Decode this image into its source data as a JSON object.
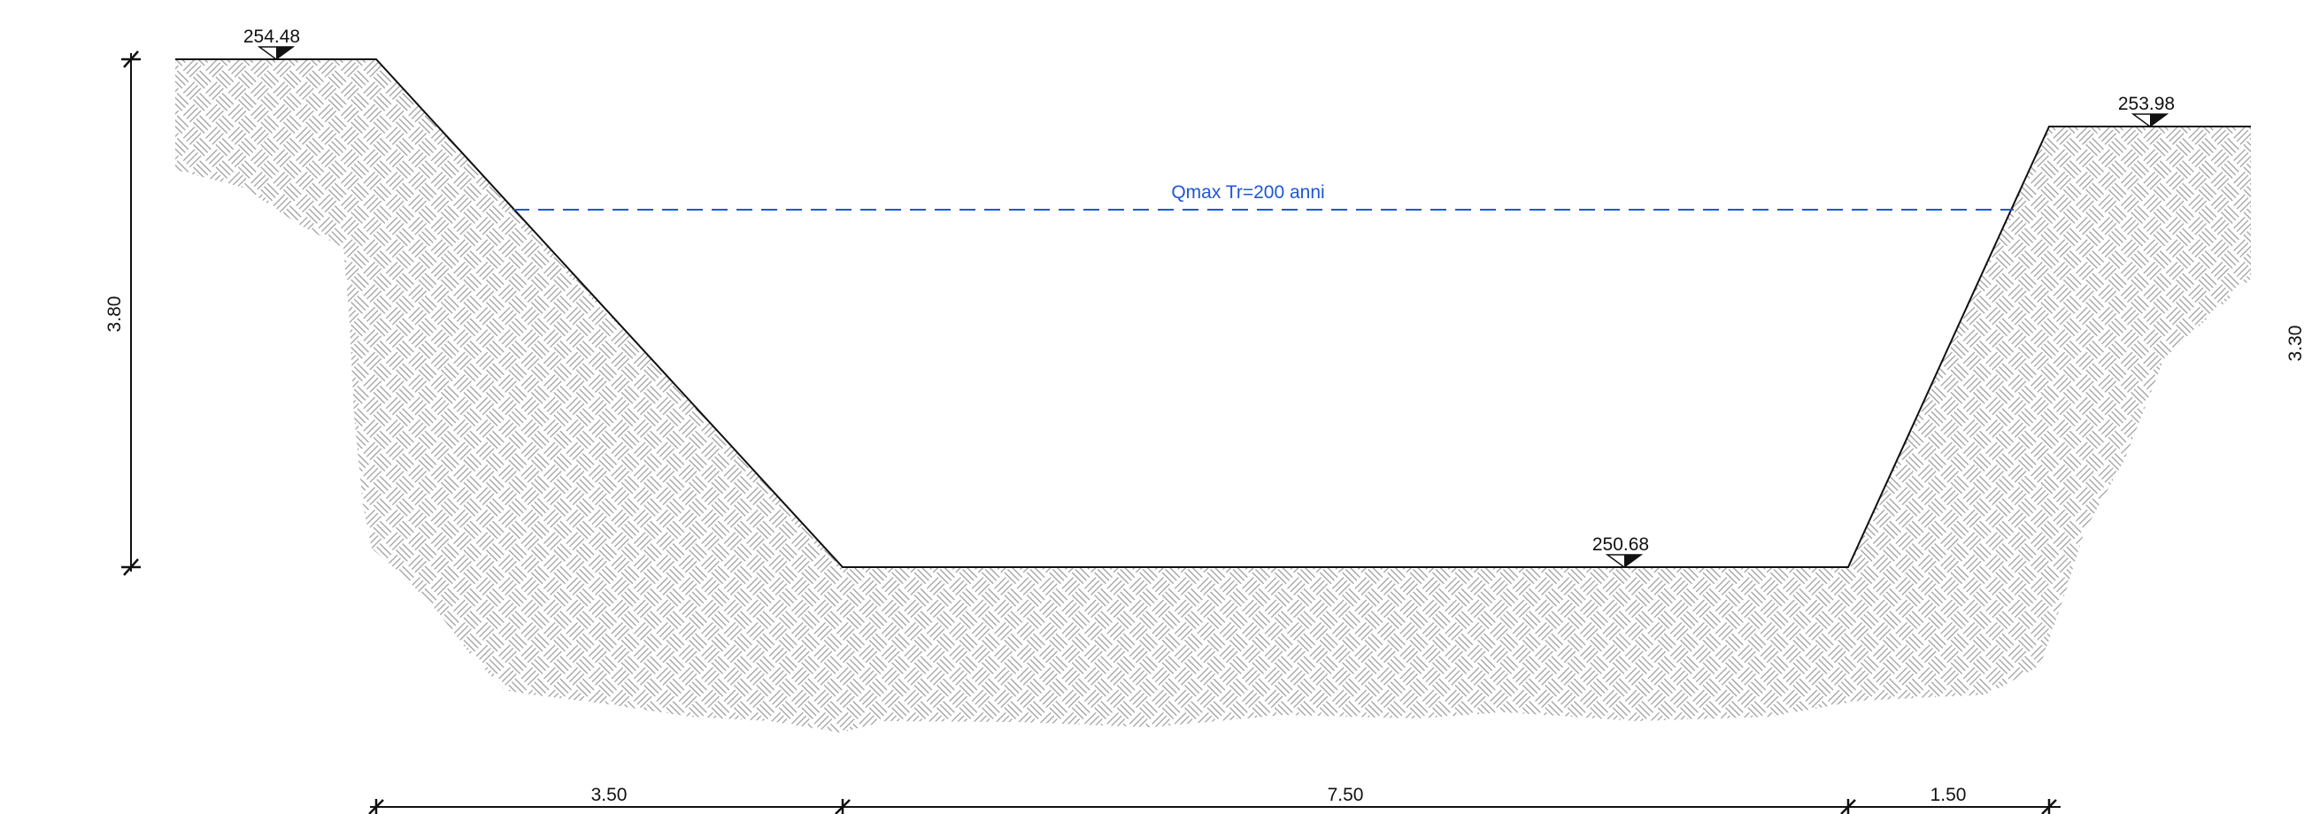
{
  "drawing": {
    "colors": {
      "water_line": "#1f56d6",
      "soil_pattern": "#9a9a9a",
      "lines": "#111111"
    },
    "elevations": {
      "left_top": "254.48",
      "right_top": "253.98",
      "bottom": "250.68"
    },
    "water_level_label": "Qmax Tr=200 anni",
    "dimensions": {
      "left_height": "3.80",
      "right_height_partial": "3.30",
      "left_slope_width": "3.50",
      "bottom_width": "7.50",
      "right_slope_width": "1.50"
    }
  }
}
